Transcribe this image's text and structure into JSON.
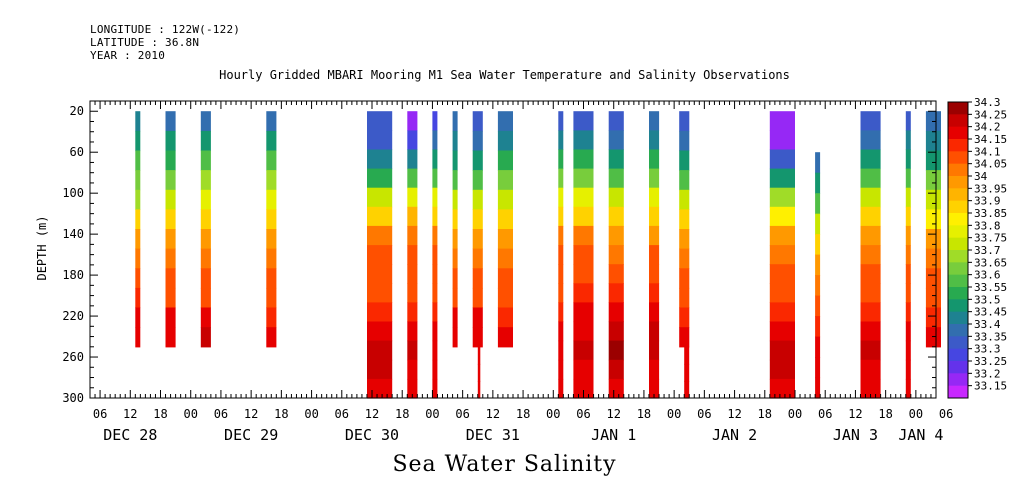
{
  "header": {
    "longitude": "LONGITUDE : 122W(-122)",
    "latitude": "LATITUDE : 36.8N",
    "year": "YEAR : 2010"
  },
  "chart_data": {
    "type": "heatmap",
    "title": "Hourly Gridded MBARI Mooring M1 Sea Water Temperature and Salinity Observations",
    "xlabel": "Sea Water Salinity",
    "ylabel": "DEPTH (m)",
    "x_units": "hours since DEC 28 00:00, 2010",
    "xlim": [
      4,
      172
    ],
    "ylim": [
      300,
      10
    ],
    "y_ticks": [
      20,
      60,
      100,
      140,
      180,
      220,
      260,
      300
    ],
    "x_hour_ticks": [
      {
        "t": 6,
        "label": "06"
      },
      {
        "t": 12,
        "label": "12"
      },
      {
        "t": 18,
        "label": "18"
      },
      {
        "t": 24,
        "label": "00"
      },
      {
        "t": 30,
        "label": "06"
      },
      {
        "t": 36,
        "label": "12"
      },
      {
        "t": 42,
        "label": "18"
      },
      {
        "t": 48,
        "label": "00"
      },
      {
        "t": 54,
        "label": "06"
      },
      {
        "t": 60,
        "label": "12"
      },
      {
        "t": 66,
        "label": "18"
      },
      {
        "t": 72,
        "label": "00"
      },
      {
        "t": 78,
        "label": "06"
      },
      {
        "t": 84,
        "label": "12"
      },
      {
        "t": 90,
        "label": "18"
      },
      {
        "t": 96,
        "label": "00"
      },
      {
        "t": 102,
        "label": "06"
      },
      {
        "t": 108,
        "label": "12"
      },
      {
        "t": 114,
        "label": "18"
      },
      {
        "t": 120,
        "label": "00"
      },
      {
        "t": 126,
        "label": "06"
      },
      {
        "t": 132,
        "label": "12"
      },
      {
        "t": 138,
        "label": "18"
      },
      {
        "t": 144,
        "label": "00"
      },
      {
        "t": 150,
        "label": "06"
      },
      {
        "t": 156,
        "label": "12"
      },
      {
        "t": 162,
        "label": "18"
      },
      {
        "t": 168,
        "label": "00"
      },
      {
        "t": 174,
        "label": "06"
      }
    ],
    "x_day_labels": [
      {
        "t": 12,
        "label": "DEC 28"
      },
      {
        "t": 36,
        "label": "DEC 29"
      },
      {
        "t": 60,
        "label": "DEC 30"
      },
      {
        "t": 84,
        "label": "DEC 31"
      },
      {
        "t": 108,
        "label": "JAN  1"
      },
      {
        "t": 132,
        "label": "JAN  2"
      },
      {
        "t": 156,
        "label": "JAN  3"
      },
      {
        "t": 169,
        "label": "JAN  4"
      }
    ],
    "colorbar_levels": [
      "34.3",
      "34.25",
      "34.2",
      "34.15",
      "34.1",
      "34.05",
      "34",
      "33.95",
      "33.9",
      "33.85",
      "33.8",
      "33.75",
      "33.7",
      "33.65",
      "33.6",
      "33.55",
      "33.5",
      "33.45",
      "33.4",
      "33.35",
      "33.3",
      "33.25",
      "33.2",
      "33.15"
    ],
    "colorbar_colors": [
      "#9b0000",
      "#c80000",
      "#e60000",
      "#fa2800",
      "#ff5000",
      "#ff7800",
      "#ff9900",
      "#ffb400",
      "#ffd200",
      "#fff000",
      "#e6f000",
      "#c8e600",
      "#a0dc28",
      "#78cd3c",
      "#50be46",
      "#28aa50",
      "#14966e",
      "#1e8291",
      "#326eaf",
      "#3c5ac8",
      "#4646e1",
      "#6432eb",
      "#9628f5",
      "#c828ff"
    ],
    "columns": [
      {
        "t0": 13,
        "t1": 14,
        "top": 20,
        "bottom": 250,
        "profile": [
          33.45,
          33.5,
          33.6,
          33.65,
          33.7,
          33.9,
          34.0,
          34.05,
          34.1,
          34.15,
          34.2,
          34.2
        ]
      },
      {
        "t0": 19,
        "t1": 21,
        "top": 20,
        "bottom": 250,
        "profile": [
          33.4,
          33.5,
          33.55,
          33.65,
          33.75,
          33.9,
          34.0,
          34.05,
          34.1,
          34.1,
          34.2,
          34.2
        ]
      },
      {
        "t0": 26,
        "t1": 28,
        "top": 20,
        "bottom": 250,
        "profile": [
          33.4,
          33.5,
          33.6,
          33.7,
          33.8,
          33.9,
          34.0,
          34.05,
          34.1,
          34.1,
          34.2,
          34.25
        ]
      },
      {
        "t0": 39,
        "t1": 41,
        "top": 20,
        "bottom": 250,
        "profile": [
          33.4,
          33.5,
          33.6,
          33.7,
          33.8,
          33.9,
          34.0,
          34.05,
          34.1,
          34.1,
          34.15,
          34.2
        ]
      },
      {
        "t0": 59,
        "t1": 64,
        "top": 20,
        "bottom": 300,
        "profile": [
          33.35,
          33.35,
          33.45,
          33.55,
          33.75,
          33.9,
          34.05,
          34.1,
          34.1,
          34.1,
          34.15,
          34.2,
          34.25,
          34.25,
          34.2
        ]
      },
      {
        "t0": 67,
        "t1": 69,
        "top": 20,
        "bottom": 300,
        "profile": [
          33.2,
          33.3,
          33.45,
          33.6,
          33.8,
          33.95,
          34.05,
          34.1,
          34.1,
          34.1,
          34.15,
          34.2,
          34.25,
          34.2,
          34.2
        ]
      },
      {
        "t0": 72,
        "t1": 73,
        "top": 20,
        "bottom": 300,
        "profile": [
          33.3,
          33.4,
          33.5,
          33.6,
          33.8,
          33.9,
          34.05,
          34.1,
          34.1,
          34.1,
          34.15,
          34.2,
          34.2,
          34.2,
          34.2
        ]
      },
      {
        "t0": 76,
        "t1": 77,
        "top": 20,
        "bottom": 250,
        "profile": [
          33.4,
          33.45,
          33.5,
          33.6,
          33.75,
          33.9,
          34.0,
          34.05,
          34.1,
          34.1,
          34.2,
          34.2
        ]
      },
      {
        "t0": 80,
        "t1": 82,
        "top": 20,
        "bottom": 250,
        "profile": [
          33.35,
          33.4,
          33.5,
          33.6,
          33.75,
          33.9,
          34.0,
          34.05,
          34.1,
          34.1,
          34.2,
          34.2
        ]
      },
      {
        "t0": 81,
        "t1": 81.5,
        "top": 250,
        "bottom": 300,
        "profile": [
          34.2,
          34.2,
          34.2
        ]
      },
      {
        "t0": 85,
        "t1": 88,
        "top": 20,
        "bottom": 250,
        "profile": [
          33.4,
          33.45,
          33.55,
          33.65,
          33.75,
          33.9,
          34.0,
          34.05,
          34.1,
          34.1,
          34.15,
          34.2
        ]
      },
      {
        "t0": 97,
        "t1": 98,
        "top": 20,
        "bottom": 300,
        "profile": [
          33.35,
          33.45,
          33.55,
          33.65,
          33.8,
          33.9,
          34.05,
          34.1,
          34.1,
          34.1,
          34.15,
          34.2,
          34.2,
          34.2,
          34.2
        ]
      },
      {
        "t0": 100,
        "t1": 104,
        "top": 20,
        "bottom": 300,
        "profile": [
          33.35,
          33.45,
          33.55,
          33.65,
          33.8,
          33.9,
          34.05,
          34.1,
          34.1,
          34.15,
          34.2,
          34.2,
          34.25,
          34.2,
          34.2
        ]
      },
      {
        "t0": 107,
        "t1": 110,
        "top": 20,
        "bottom": 300,
        "profile": [
          33.35,
          33.4,
          33.5,
          33.6,
          33.75,
          33.9,
          34.0,
          34.05,
          34.1,
          34.15,
          34.2,
          34.25,
          34.3,
          34.25,
          34.2
        ]
      },
      {
        "t0": 115,
        "t1": 117,
        "top": 20,
        "bottom": 300,
        "profile": [
          33.4,
          33.45,
          33.55,
          33.65,
          33.8,
          33.9,
          34.0,
          34.1,
          34.1,
          34.15,
          34.2,
          34.25,
          34.25,
          34.2,
          34.2
        ]
      },
      {
        "t0": 121,
        "t1": 123,
        "top": 20,
        "bottom": 250,
        "profile": [
          33.35,
          33.4,
          33.5,
          33.6,
          33.75,
          33.9,
          34.0,
          34.05,
          34.1,
          34.1,
          34.15,
          34.2
        ]
      },
      {
        "t0": 122,
        "t1": 123,
        "top": 250,
        "bottom": 300,
        "profile": [
          34.2,
          34.2,
          34.2
        ]
      },
      {
        "t0": 139,
        "t1": 144,
        "top": 20,
        "bottom": 300,
        "profile": [
          33.2,
          33.2,
          33.35,
          33.5,
          33.7,
          33.85,
          34.0,
          34.05,
          34.1,
          34.1,
          34.15,
          34.2,
          34.25,
          34.25,
          34.2
        ]
      },
      {
        "t0": 148,
        "t1": 149,
        "top": 60,
        "bottom": 300,
        "profile": [
          33.4,
          33.5,
          33.6,
          33.75,
          33.9,
          34.0,
          34.05,
          34.1,
          34.15,
          34.2,
          34.2,
          34.2
        ]
      },
      {
        "t0": 157,
        "t1": 161,
        "top": 20,
        "bottom": 300,
        "profile": [
          33.35,
          33.4,
          33.5,
          33.6,
          33.75,
          33.9,
          34.0,
          34.05,
          34.1,
          34.1,
          34.15,
          34.2,
          34.25,
          34.2,
          34.2
        ]
      },
      {
        "t0": 166,
        "t1": 167,
        "top": 20,
        "bottom": 300,
        "profile": [
          33.35,
          33.45,
          33.5,
          33.6,
          33.75,
          33.9,
          34.0,
          34.05,
          34.1,
          34.1,
          34.15,
          34.2,
          34.2,
          34.2,
          34.2
        ]
      },
      {
        "t0": 170,
        "t1": 173,
        "top": 20,
        "bottom": 250,
        "profile": [
          33.4,
          33.45,
          33.5,
          33.65,
          33.75,
          33.85,
          34.0,
          34.05,
          34.1,
          34.1,
          34.15,
          34.2
        ]
      }
    ]
  }
}
